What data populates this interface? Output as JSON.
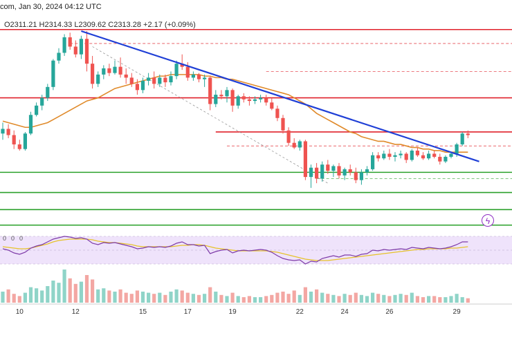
{
  "header": {
    "title": "com, Jan 30, 2024 04:12 UTC",
    "ohlc": "O2311.21  H2314.33  L2309.62  C2313.28  +2.17 (+0.09%)"
  },
  "rsi_labels": [
    "0",
    "0",
    "0"
  ],
  "colors": {
    "bull": "#26a69a",
    "bear": "#ef5350",
    "trendline": "#1f3fd6",
    "ma": "#e08a2a",
    "resistance": "#e0202a",
    "support": "#2aa02a",
    "rsi": "#7e3ba8",
    "rsi_ma": "#e6c229",
    "rsi_band": "#efe3fb",
    "badge": "#8e2ec4"
  },
  "badge_icon": "lightning-icon",
  "chart_data": {
    "type": "candlestick",
    "title": "",
    "x_tick_labels": [
      {
        "label": "10",
        "index": 3
      },
      {
        "label": "12",
        "index": 13
      },
      {
        "label": "15",
        "index": 25
      },
      {
        "label": "17",
        "index": 33
      },
      {
        "label": "19",
        "index": 41
      },
      {
        "label": "22",
        "index": 53
      },
      {
        "label": "24",
        "index": 61
      },
      {
        "label": "26",
        "index": 69
      },
      {
        "label": "29",
        "index": 81
      }
    ],
    "ylim": [
      2000,
      2100
    ],
    "candles": [
      [
        2030,
        2037,
        2026,
        2033
      ],
      [
        2033,
        2036,
        2027,
        2029
      ],
      [
        2029,
        2032,
        2020,
        2023
      ],
      [
        2023,
        2026,
        2019,
        2020
      ],
      [
        2020,
        2031,
        2019,
        2030
      ],
      [
        2030,
        2044,
        2029,
        2042
      ],
      [
        2042,
        2050,
        2041,
        2048
      ],
      [
        2048,
        2055,
        2045,
        2053
      ],
      [
        2053,
        2062,
        2051,
        2060
      ],
      [
        2060,
        2078,
        2058,
        2077
      ],
      [
        2077,
        2085,
        2075,
        2082
      ],
      [
        2082,
        2094,
        2080,
        2092
      ],
      [
        2092,
        2095,
        2084,
        2086
      ],
      [
        2086,
        2090,
        2079,
        2081
      ],
      [
        2081,
        2093,
        2078,
        2091
      ],
      [
        2091,
        2096,
        2070,
        2075
      ],
      [
        2075,
        2080,
        2059,
        2062
      ],
      [
        2062,
        2070,
        2060,
        2068
      ],
      [
        2068,
        2074,
        2065,
        2072
      ],
      [
        2072,
        2075,
        2067,
        2069
      ],
      [
        2069,
        2077,
        2068,
        2073
      ],
      [
        2073,
        2079,
        2066,
        2068
      ],
      [
        2068,
        2072,
        2062,
        2066
      ],
      [
        2066,
        2069,
        2060,
        2062
      ],
      [
        2062,
        2065,
        2055,
        2058
      ],
      [
        2058,
        2066,
        2056,
        2064
      ],
      [
        2064,
        2069,
        2061,
        2066
      ],
      [
        2066,
        2070,
        2059,
        2062
      ],
      [
        2062,
        2068,
        2060,
        2066
      ],
      [
        2066,
        2068,
        2060,
        2063
      ],
      [
        2063,
        2070,
        2061,
        2067
      ],
      [
        2067,
        2077,
        2065,
        2075
      ],
      [
        2075,
        2081,
        2071,
        2073
      ],
      [
        2073,
        2076,
        2064,
        2066
      ],
      [
        2066,
        2070,
        2064,
        2068
      ],
      [
        2068,
        2069,
        2063,
        2065
      ],
      [
        2065,
        2068,
        2060,
        2066
      ],
      [
        2066,
        2067,
        2045,
        2049
      ],
      [
        2049,
        2058,
        2047,
        2055
      ],
      [
        2055,
        2058,
        2052,
        2054
      ],
      [
        2054,
        2060,
        2050,
        2058
      ],
      [
        2058,
        2059,
        2044,
        2048
      ],
      [
        2048,
        2055,
        2046,
        2054
      ],
      [
        2054,
        2056,
        2050,
        2052
      ],
      [
        2052,
        2054,
        2048,
        2051
      ],
      [
        2051,
        2054,
        2049,
        2052
      ],
      [
        2052,
        2055,
        2050,
        2053
      ],
      [
        2053,
        2055,
        2048,
        2050
      ],
      [
        2050,
        2053,
        2045,
        2046
      ],
      [
        2046,
        2048,
        2038,
        2040
      ],
      [
        2040,
        2042,
        2030,
        2032
      ],
      [
        2032,
        2034,
        2022,
        2024
      ],
      [
        2024,
        2027,
        2020,
        2021
      ],
      [
        2021,
        2026,
        2019,
        2025
      ],
      [
        2025,
        2026,
        2000,
        2002
      ],
      [
        2002,
        2010,
        1995,
        2008
      ],
      [
        2008,
        2011,
        1998,
        2001
      ],
      [
        2001,
        2012,
        1999,
        2010
      ],
      [
        2010,
        2013,
        2004,
        2006
      ],
      [
        2006,
        2010,
        2002,
        2009
      ],
      [
        2009,
        2011,
        2001,
        2003
      ],
      [
        2003,
        2008,
        2000,
        2007
      ],
      [
        2007,
        2010,
        2003,
        2005
      ],
      [
        2005,
        2008,
        1998,
        2000
      ],
      [
        2000,
        2007,
        1997,
        2005
      ],
      [
        2005,
        2009,
        2003,
        2007
      ],
      [
        2007,
        2018,
        2006,
        2016
      ],
      [
        2016,
        2018,
        2012,
        2014
      ],
      [
        2014,
        2019,
        2013,
        2017
      ],
      [
        2017,
        2020,
        2013,
        2015
      ],
      [
        2015,
        2018,
        2012,
        2016
      ],
      [
        2016,
        2019,
        2014,
        2017
      ],
      [
        2017,
        2018,
        2011,
        2013
      ],
      [
        2013,
        2020,
        2012,
        2019
      ],
      [
        2019,
        2021,
        2015,
        2016
      ],
      [
        2016,
        2018,
        2013,
        2014
      ],
      [
        2014,
        2019,
        2013,
        2017
      ],
      [
        2017,
        2019,
        2014,
        2015
      ],
      [
        2015,
        2017,
        2010,
        2012
      ],
      [
        2012,
        2016,
        2011,
        2015
      ],
      [
        2015,
        2018,
        2014,
        2017
      ],
      [
        2017,
        2024,
        2015,
        2023
      ],
      [
        2023,
        2031,
        2022,
        2030
      ],
      [
        2030,
        2032,
        2027,
        2029
      ]
    ],
    "moving_average": [
      2038,
      2037,
      2036,
      2035,
      2034,
      2034,
      2035,
      2036,
      2037,
      2039,
      2041,
      2043,
      2045,
      2047,
      2049,
      2051,
      2052,
      2053,
      2055,
      2057,
      2059,
      2060,
      2061,
      2062,
      2063,
      2064,
      2065,
      2066,
      2067,
      2067,
      2068,
      2068,
      2068,
      2068,
      2068,
      2068,
      2067,
      2067,
      2066,
      2066,
      2065,
      2065,
      2064,
      2063,
      2062,
      2061,
      2060,
      2059,
      2058,
      2057,
      2056,
      2055,
      2053,
      2051,
      2049,
      2046,
      2043,
      2041,
      2039,
      2037,
      2035,
      2033,
      2031,
      2030,
      2028,
      2027,
      2026,
      2025,
      2025,
      2024,
      2023,
      2023,
      2022,
      2021,
      2021,
      2020,
      2020,
      2019,
      2019,
      2018,
      2018,
      2018,
      2018,
      2018
    ],
    "trendline": [
      {
        "index": 14,
        "price": 2096
      },
      {
        "index": 85,
        "price": 2012
      }
    ],
    "diagonal_dashed": [
      {
        "index": 16,
        "price": 2086
      },
      {
        "index": 58,
        "price": 1998
      }
    ],
    "horizontal_levels": [
      {
        "price": 2097,
        "color": "resistance",
        "style": "solid",
        "from_index": 0
      },
      {
        "price": 2088,
        "color": "resistance",
        "style": "dashed",
        "from_index": 12
      },
      {
        "price": 2070,
        "color": "resistance",
        "style": "dashed",
        "from_index": 47
      },
      {
        "price": 2053,
        "color": "resistance",
        "style": "solid",
        "from_index": 0
      },
      {
        "price": 2031,
        "color": "resistance",
        "style": "solid",
        "from_index": 38
      },
      {
        "price": 2022,
        "color": "resistance",
        "style": "dashed",
        "from_index": 40
      },
      {
        "price": 2005,
        "color": "support",
        "style": "solid",
        "from_index": 0
      },
      {
        "price": 2001,
        "color": "support",
        "style": "dashed",
        "from_index": 56
      },
      {
        "price": 1992,
        "color": "support",
        "style": "solid",
        "from_index": 0
      },
      {
        "price": 1981,
        "color": "support",
        "style": "solid",
        "from_index": 0
      },
      {
        "price": 1971,
        "color": "support",
        "style": "solid",
        "from_index": 0
      }
    ],
    "rsi": [
      52,
      50,
      46,
      44,
      47,
      53,
      56,
      58,
      62,
      66,
      68,
      70,
      69,
      67,
      68,
      66,
      60,
      58,
      61,
      60,
      61,
      59,
      57,
      55,
      52,
      53,
      55,
      54,
      55,
      54,
      56,
      60,
      62,
      58,
      58,
      56,
      57,
      45,
      48,
      50,
      51,
      46,
      49,
      50,
      49,
      50,
      51,
      50,
      47,
      42,
      38,
      36,
      35,
      36,
      30,
      34,
      33,
      38,
      40,
      42,
      40,
      43,
      43,
      41,
      44,
      45,
      50,
      49,
      51,
      50,
      51,
      52,
      51,
      54,
      53,
      52,
      54,
      53,
      52,
      53,
      55,
      58,
      62,
      62
    ],
    "rsi_ma": [
      55,
      54,
      53,
      52,
      52,
      53,
      55,
      57,
      59,
      62,
      64,
      65,
      66,
      66,
      66,
      66,
      65,
      63,
      62,
      61,
      61,
      60,
      59,
      58,
      56,
      55,
      55,
      55,
      55,
      55,
      55,
      56,
      57,
      57,
      58,
      58,
      57,
      55,
      53,
      52,
      51,
      50,
      49,
      49,
      49,
      49,
      49,
      49,
      48,
      47,
      45,
      43,
      41,
      39,
      37,
      36,
      35,
      35,
      35,
      36,
      37,
      38,
      39,
      40,
      41,
      42,
      43,
      44,
      45,
      46,
      47,
      48,
      49,
      50,
      51,
      51,
      52,
      52,
      52,
      52,
      53,
      53,
      54,
      55
    ],
    "volume": [
      10,
      12,
      8,
      6,
      9,
      14,
      13,
      11,
      15,
      20,
      18,
      30,
      22,
      17,
      19,
      25,
      21,
      12,
      13,
      11,
      10,
      12,
      9,
      8,
      11,
      10,
      9,
      8,
      9,
      7,
      10,
      12,
      11,
      9,
      8,
      7,
      8,
      14,
      10,
      7,
      6,
      9,
      6,
      5,
      6,
      5,
      5,
      6,
      7,
      9,
      10,
      8,
      11,
      7,
      14,
      10,
      12,
      9,
      8,
      7,
      6,
      8,
      7,
      9,
      7,
      6,
      9,
      8,
      7,
      6,
      7,
      8,
      7,
      9,
      6,
      5,
      6,
      6,
      5,
      5,
      6,
      8,
      5,
      4
    ]
  }
}
